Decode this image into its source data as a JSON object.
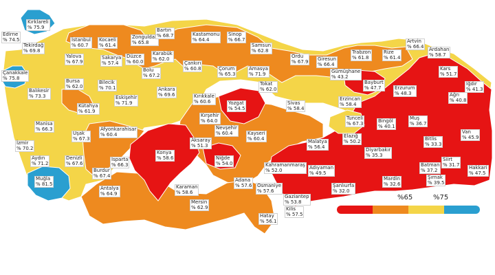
{
  "colors": {
    "red": "#e61414",
    "orange": "#ee8a1f",
    "yellow": "#f4d548",
    "blue": "#2a9fd0",
    "border": "#ffffff",
    "background": "#ffffff"
  },
  "legend": {
    "threshold_low": "%65",
    "threshold_high": "%75",
    "categories": [
      "red",
      "orange",
      "yellow",
      "blue"
    ]
  },
  "provinces": [
    {
      "name": "Edirne",
      "value": "% 74.5",
      "cat": "yellow"
    },
    {
      "name": "Kırklareli",
      "value": "% 75.9",
      "cat": "blue"
    },
    {
      "name": "Tekirdağ",
      "value": "% 69.8",
      "cat": "yellow"
    },
    {
      "name": "Çanakkale",
      "value": "% 75.8",
      "cat": "blue"
    },
    {
      "name": "İstanbul",
      "value": "% 60.7",
      "cat": "orange"
    },
    {
      "name": "Kocaeli",
      "value": "% 61.4",
      "cat": "orange"
    },
    {
      "name": "Yalova",
      "value": "% 67.9",
      "cat": "yellow"
    },
    {
      "name": "Zonguldak",
      "value": "% 65.8",
      "cat": "yellow"
    },
    {
      "name": "Bartın",
      "value": "% 68.7",
      "cat": "yellow"
    },
    {
      "name": "Kastamonu",
      "value": "% 64.4",
      "cat": "orange"
    },
    {
      "name": "Sinop",
      "value": "% 66.7",
      "cat": "yellow"
    },
    {
      "name": "Samsun",
      "value": "% 62.8",
      "cat": "orange"
    },
    {
      "name": "Sakarya",
      "value": "% 57.4",
      "cat": "orange"
    },
    {
      "name": "Düzce",
      "value": "% 60.0",
      "cat": "orange"
    },
    {
      "name": "Karabük",
      "value": "% 62.0",
      "cat": "orange"
    },
    {
      "name": "Çankırı",
      "value": "% 60.8",
      "cat": "orange"
    },
    {
      "name": "Ordu",
      "value": "% 67.9",
      "cat": "yellow"
    },
    {
      "name": "Giresun",
      "value": "% 66.4",
      "cat": "yellow"
    },
    {
      "name": "Trabzon",
      "value": "% 61.8",
      "cat": "orange"
    },
    {
      "name": "Rize",
      "value": "% 61.4",
      "cat": "orange"
    },
    {
      "name": "Artvin",
      "value": "% 66.4",
      "cat": "yellow"
    },
    {
      "name": "Ardahan",
      "value": "% 58.7",
      "cat": "orange"
    },
    {
      "name": "Bursa",
      "value": "% 62.0",
      "cat": "orange"
    },
    {
      "name": "Bilecik",
      "value": "% 70.1",
      "cat": "yellow"
    },
    {
      "name": "Bolu",
      "value": "% 67.2",
      "cat": "yellow"
    },
    {
      "name": "Çorum",
      "value": "% 65.3",
      "cat": "yellow"
    },
    {
      "name": "Amasya",
      "value": "% 71.9",
      "cat": "yellow"
    },
    {
      "name": "Tokat",
      "value": "% 62.0",
      "cat": "orange"
    },
    {
      "name": "Gümüşhane",
      "value": "% 43.2",
      "cat": "red"
    },
    {
      "name": "Bayburt",
      "value": "% 47.7",
      "cat": "red"
    },
    {
      "name": "Erzurum",
      "value": "% 48.3",
      "cat": "red"
    },
    {
      "name": "Kars",
      "value": "% 51.7",
      "cat": "red"
    },
    {
      "name": "Iğdır",
      "value": "% 41.3",
      "cat": "red"
    },
    {
      "name": "Ağrı",
      "value": "% 40.8",
      "cat": "red"
    },
    {
      "name": "Balıkesir",
      "value": "% 73.3",
      "cat": "yellow"
    },
    {
      "name": "Eskişehir",
      "value": "% 71.9",
      "cat": "yellow"
    },
    {
      "name": "Ankara",
      "value": "% 69.6",
      "cat": "yellow"
    },
    {
      "name": "Kırıkkale",
      "value": "% 60.6",
      "cat": "orange"
    },
    {
      "name": "Yozgat",
      "value": "% 54.5",
      "cat": "red"
    },
    {
      "name": "Sivas",
      "value": "% 58.4",
      "cat": "orange"
    },
    {
      "name": "Erzincan",
      "value": "% 58.4",
      "cat": "orange"
    },
    {
      "name": "Kütahya",
      "value": "% 61.9",
      "cat": "orange"
    },
    {
      "name": "Manisa",
      "value": "% 66.3",
      "cat": "yellow"
    },
    {
      "name": "Uşak",
      "value": "% 67.3",
      "cat": "yellow"
    },
    {
      "name": "Afyonkarahisar",
      "value": "% 60.4",
      "cat": "orange"
    },
    {
      "name": "Kırşehir",
      "value": "% 64.0",
      "cat": "orange"
    },
    {
      "name": "Nevşehir",
      "value": "% 60.4",
      "cat": "orange"
    },
    {
      "name": "Kayseri",
      "value": "% 60.4",
      "cat": "orange"
    },
    {
      "name": "Tunceli",
      "value": "% 67.3",
      "cat": "yellow"
    },
    {
      "name": "Bingöl",
      "value": "% 40.1",
      "cat": "red"
    },
    {
      "name": "Muş",
      "value": "% 36.7",
      "cat": "red"
    },
    {
      "name": "Van",
      "value": "% 45.9",
      "cat": "red"
    },
    {
      "name": "İzmir",
      "value": "% 70.2",
      "cat": "yellow"
    },
    {
      "name": "Aydın",
      "value": "% 71.2",
      "cat": "yellow"
    },
    {
      "name": "Denizli",
      "value": "% 67.6",
      "cat": "yellow"
    },
    {
      "name": "Isparta",
      "value": "% 66.3",
      "cat": "yellow"
    },
    {
      "name": "Konya",
      "value": "% 58.6",
      "cat": "orange"
    },
    {
      "name": "Aksaray",
      "value": "% 51.3",
      "cat": "red"
    },
    {
      "name": "Niğde",
      "value": "% 54.0",
      "cat": "red"
    },
    {
      "name": "Malatya",
      "value": "% 56.4",
      "cat": "orange"
    },
    {
      "name": "Elazığ",
      "value": "% 50.2",
      "cat": "red"
    },
    {
      "name": "Diyarbakır",
      "value": "% 35.3",
      "cat": "red"
    },
    {
      "name": "Bitlis",
      "value": "% 33.3",
      "cat": "red"
    },
    {
      "name": "Siirt",
      "value": "% 31.7",
      "cat": "red"
    },
    {
      "name": "Batman",
      "value": "% 37.2",
      "cat": "red"
    },
    {
      "name": "Hakkari",
      "value": "% 47.5",
      "cat": "red"
    },
    {
      "name": "Şırnak",
      "value": "% 39.5",
      "cat": "red"
    },
    {
      "name": "Muğla",
      "value": "% 81.5",
      "cat": "blue"
    },
    {
      "name": "Burdur",
      "value": "% 67.4",
      "cat": "yellow"
    },
    {
      "name": "Antalya",
      "value": "% 64.9",
      "cat": "orange"
    },
    {
      "name": "Karaman",
      "value": "% 58.6",
      "cat": "orange"
    },
    {
      "name": "Mersin",
      "value": "% 62.9",
      "cat": "orange"
    },
    {
      "name": "Adana",
      "value": "% 57.6",
      "cat": "orange"
    },
    {
      "name": "Kahramanmaraş",
      "value": "% 52.0",
      "cat": "red"
    },
    {
      "name": "Adıyaman",
      "value": "% 49.5",
      "cat": "red"
    },
    {
      "name": "Şanlıurfa",
      "value": "% 32.0",
      "cat": "red"
    },
    {
      "name": "Mardin",
      "value": "% 32.6",
      "cat": "red"
    },
    {
      "name": "Osmaniye",
      "value": "% 57.6",
      "cat": "orange"
    },
    {
      "name": "Gaziantep",
      "value": "% 53.8",
      "cat": "red"
    },
    {
      "name": "Kilis",
      "value": "% 57.5",
      "cat": "orange"
    },
    {
      "name": "Hatay",
      "value": "% 56.1",
      "cat": "orange"
    }
  ]
}
